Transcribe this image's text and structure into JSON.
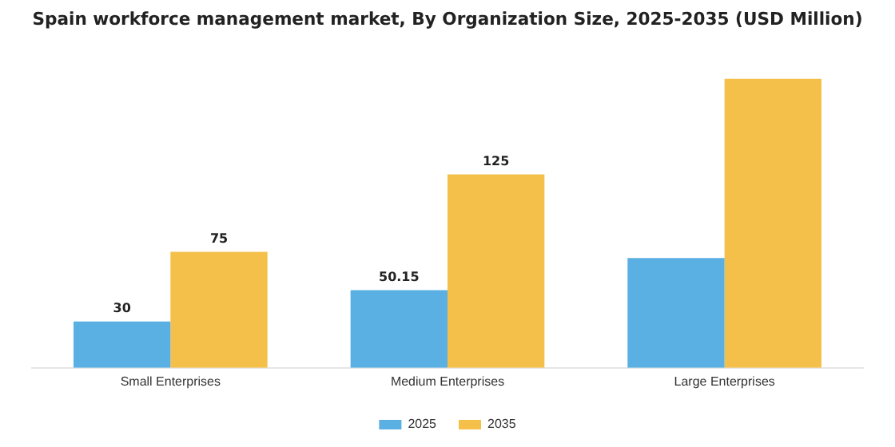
{
  "chart_data": {
    "type": "bar",
    "title": "Spain workforce management market, By Organization Size, 2025-2035 (USD Million)",
    "categories": [
      "Small Enterprises",
      "Medium Enterprises",
      "Large Enterprises"
    ],
    "series": [
      {
        "name": "2025",
        "color": "#5aafe3",
        "values": [
          30,
          50.15,
          71
        ],
        "value_labels": [
          "30",
          "50.15",
          null
        ]
      },
      {
        "name": "2035",
        "color": "#f5c04a",
        "values": [
          75,
          125,
          187
        ],
        "value_labels": [
          "75",
          "125",
          null
        ]
      }
    ],
    "legend": "bottom",
    "grid": false
  }
}
